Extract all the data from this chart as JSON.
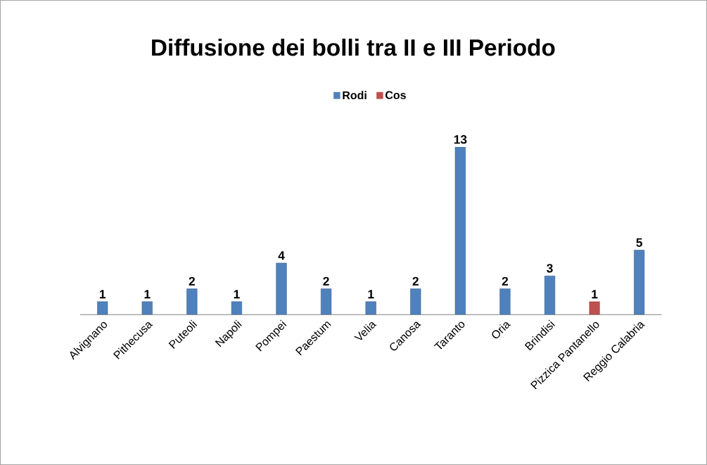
{
  "chart_data": {
    "type": "bar",
    "title": "Diffusione dei bolli tra II e III Periodo",
    "categories": [
      "Alvignano",
      "Pithecusa",
      "Puteoli",
      "Napoli",
      "Pompei",
      "Paestum",
      "Velia",
      "Canosa",
      "Taranto",
      "Oria",
      "Brindisi",
      "Pizzica Pantanello",
      "Reggio Calabria"
    ],
    "series": [
      {
        "name": "Rodi",
        "color": "#4f81bd",
        "values": [
          1,
          1,
          2,
          1,
          4,
          2,
          1,
          2,
          13,
          2,
          3,
          null,
          5
        ]
      },
      {
        "name": "Cos",
        "color": "#c0504d",
        "values": [
          null,
          null,
          null,
          null,
          null,
          null,
          null,
          null,
          null,
          null,
          null,
          1,
          null
        ]
      }
    ],
    "data_labels": true,
    "legend": "top"
  }
}
